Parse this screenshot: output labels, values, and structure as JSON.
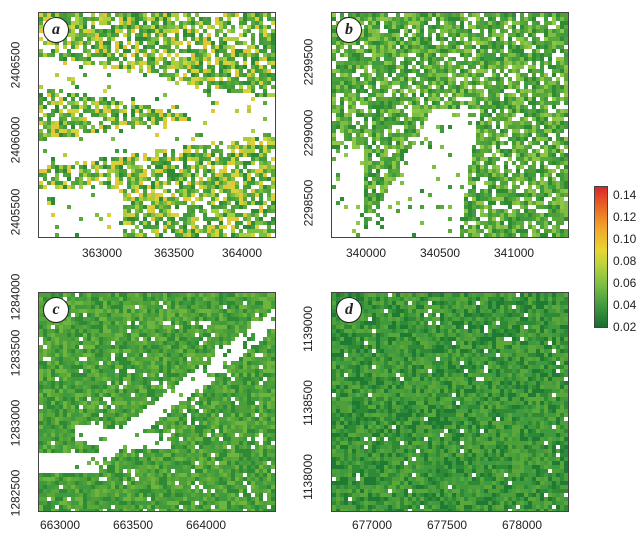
{
  "panels": [
    {
      "label": "a",
      "x_ticks": [
        "363000",
        "363500",
        "364000"
      ],
      "y_ticks": [
        "2405500",
        "2406000",
        "2406500"
      ]
    },
    {
      "label": "b",
      "x_ticks": [
        "340000",
        "340500",
        "341000"
      ],
      "y_ticks": [
        "2298500",
        "2299000",
        "2299500"
      ]
    },
    {
      "label": "c",
      "x_ticks": [
        "663000",
        "663500",
        "664000"
      ],
      "y_ticks": [
        "1282500",
        "1283000",
        "1283500",
        "1284000"
      ]
    },
    {
      "label": "d",
      "x_ticks": [
        "677000",
        "677500",
        "678000"
      ],
      "y_ticks": [
        "1138000",
        "1138500",
        "1139000"
      ]
    }
  ],
  "colorbar": {
    "ticks": [
      "0.02",
      "0.04",
      "0.06",
      "0.08",
      "0.10",
      "0.12",
      "0.14"
    ]
  },
  "colors": {
    "low": "#1c6b32",
    "mid": "#e7d532",
    "high": "#d8272b"
  }
}
